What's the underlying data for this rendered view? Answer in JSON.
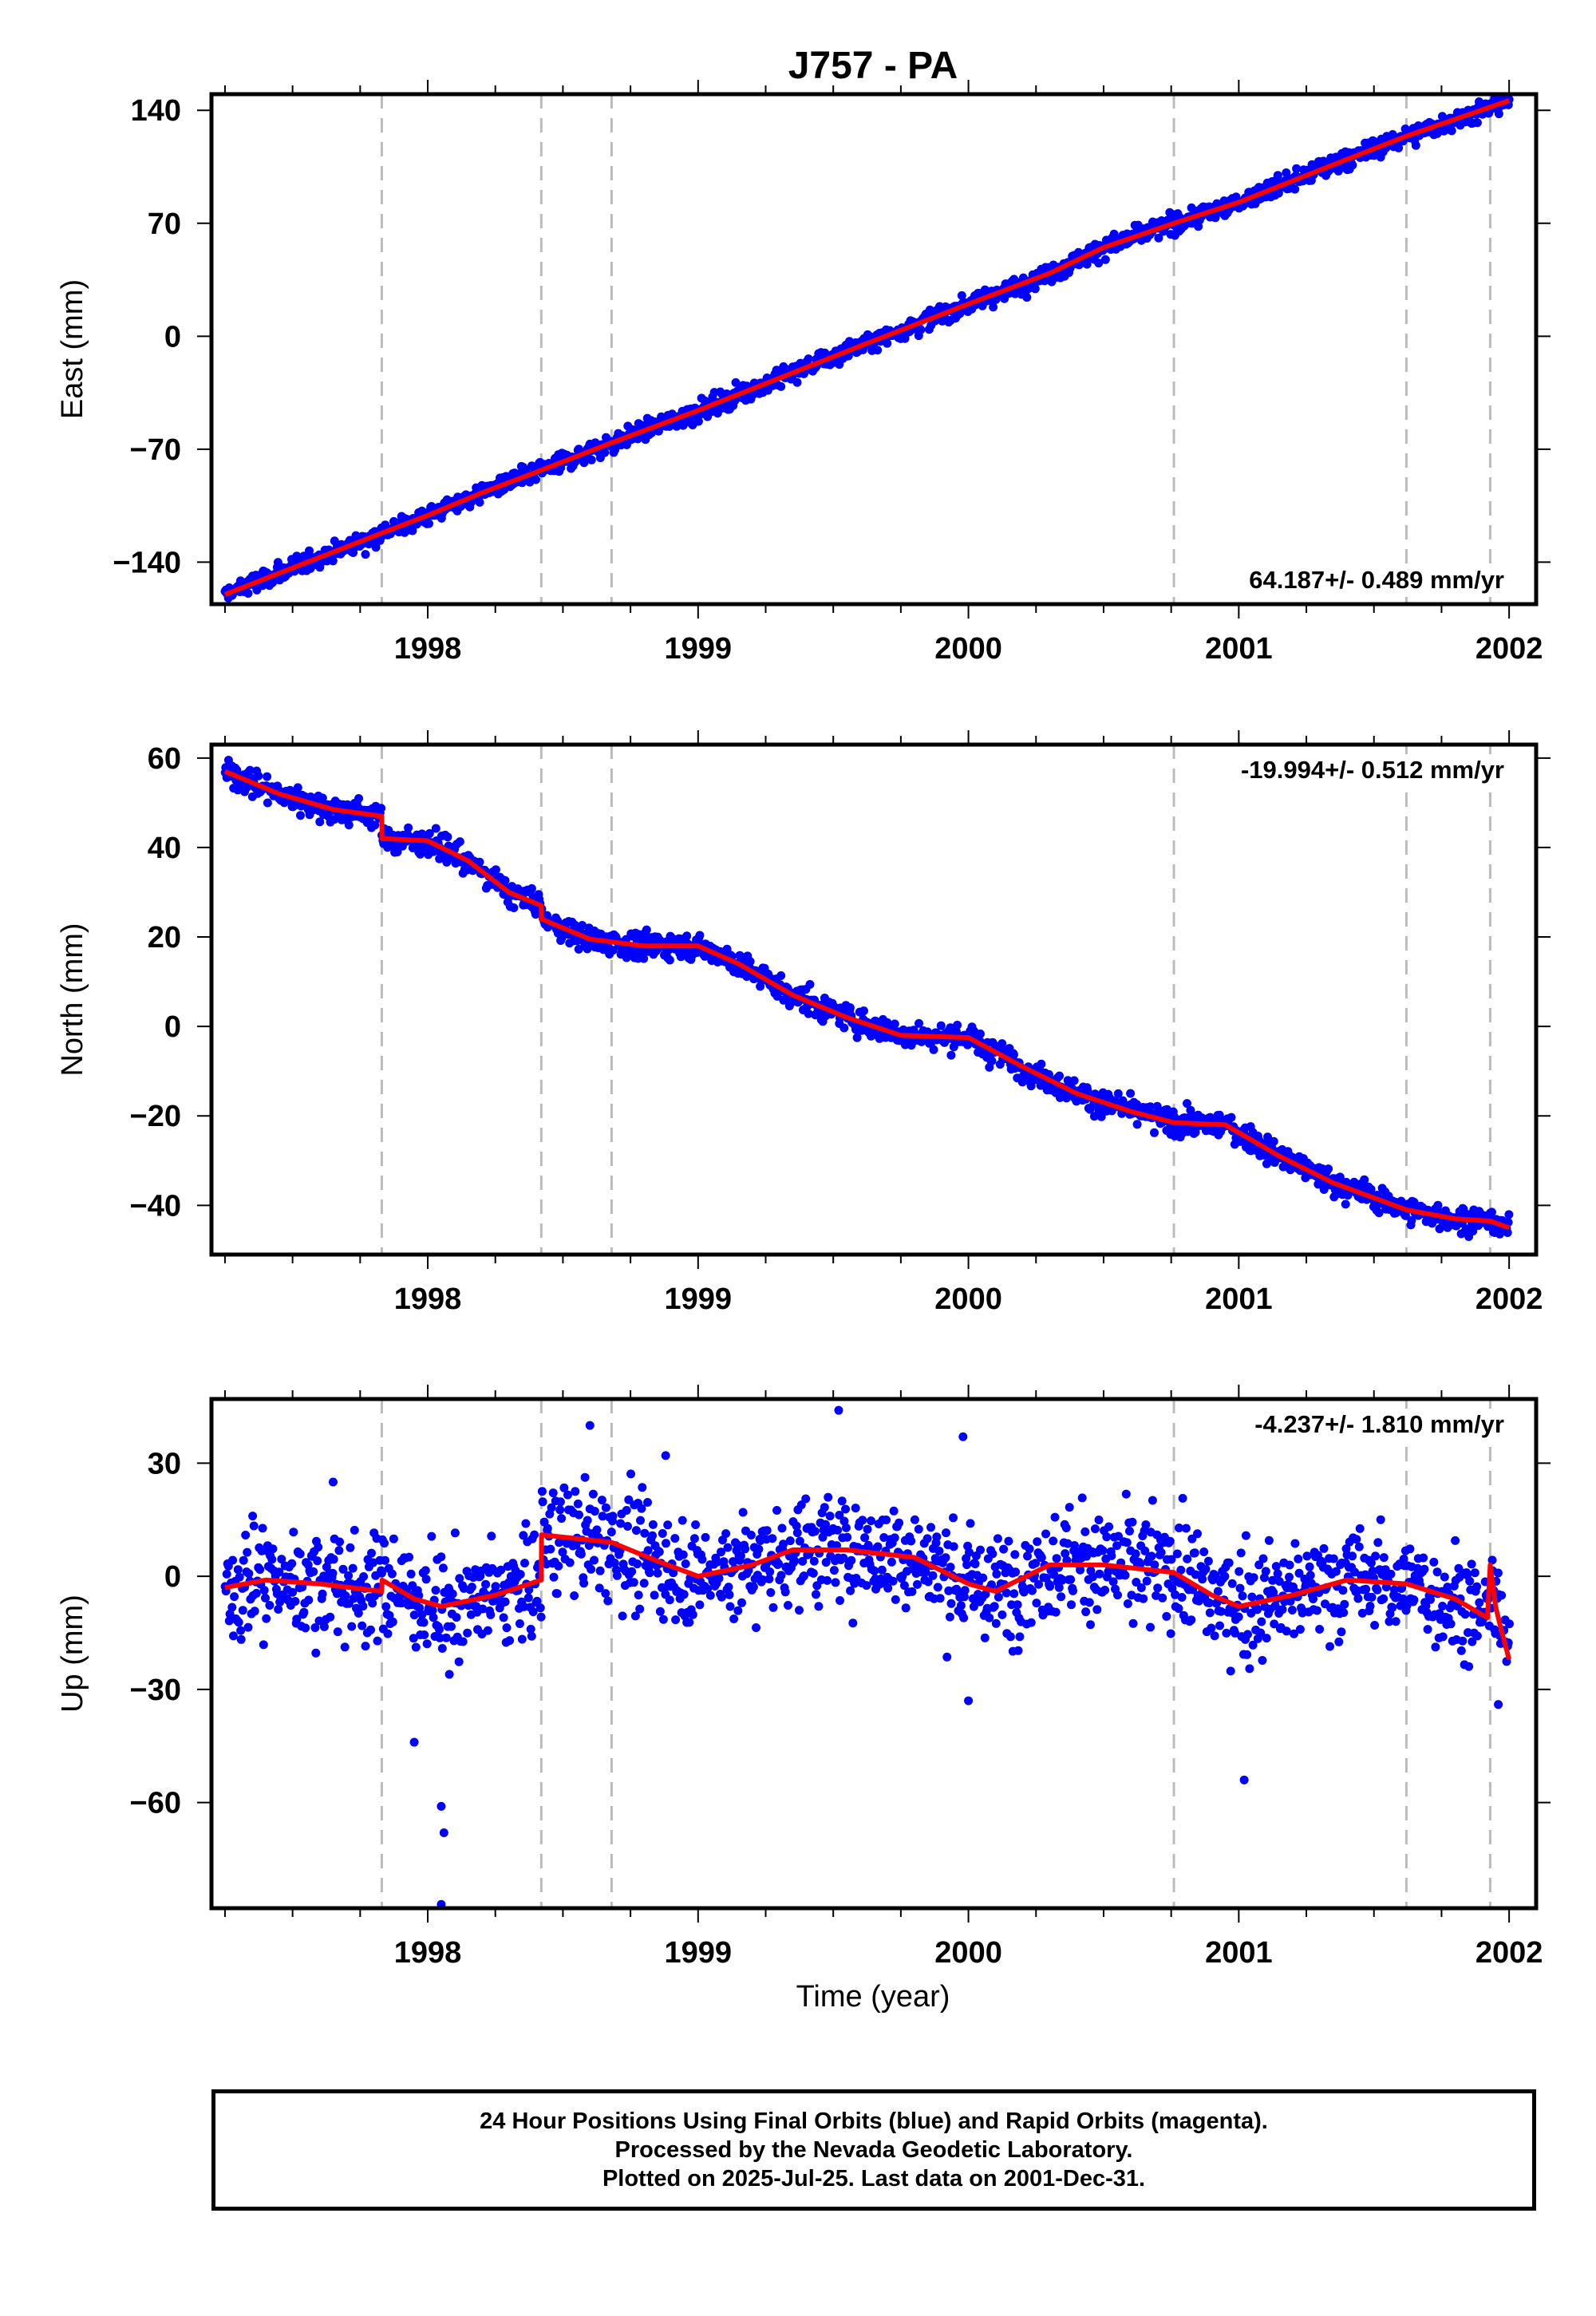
{
  "title": "J757 - PA",
  "xlabel": "Time (year)",
  "footer": {
    "line1": "24 Hour Positions Using Final Orbits (blue) and Rapid Orbits (magenta).",
    "line2": "Processed by the Nevada Geodetic Laboratory.",
    "line3": "Plotted on 2025-Jul-25. Last data on 2001-Dec-31."
  },
  "colors": {
    "data_points": "#0000ff",
    "model_line": "#ff0000",
    "event_lines": "#bbbbbb",
    "frame": "#000000"
  },
  "chart_data": [
    {
      "type": "scatter",
      "component": "East",
      "ylabel": "East (mm)",
      "rate_label": "64.187+/- 0.489 mm/yr",
      "rate_position": "bottom-right",
      "xlim": [
        1997.2,
        2002.1
      ],
      "ylim": [
        -166,
        150
      ],
      "xticks": [
        1998,
        1999,
        2000,
        2001,
        2002
      ],
      "yticks": [
        -140,
        -70,
        0,
        70,
        140
      ],
      "event_lines_x": [
        1997.83,
        1998.42,
        1998.68,
        2000.76,
        2001.62,
        2001.93
      ],
      "trend": {
        "x_start": 1997.25,
        "y_start": -160,
        "x_end": 2002.0,
        "y_end": 146
      },
      "seasonal_amplitude": 2.5,
      "noise_sigma": 3.0,
      "outliers": [
        {
          "x": 1997.27,
          "y": -182
        },
        {
          "x": 1997.28,
          "y": -178
        }
      ],
      "model": [
        [
          1997.25,
          -160
        ],
        [
          1997.6,
          -137
        ],
        [
          1997.83,
          -122
        ],
        [
          1998.0,
          -111
        ],
        [
          1998.2,
          -97
        ],
        [
          1998.42,
          -83
        ],
        [
          1998.68,
          -66
        ],
        [
          1999.0,
          -46
        ],
        [
          1999.3,
          -26
        ],
        [
          1999.6,
          -6
        ],
        [
          2000.0,
          20
        ],
        [
          2000.3,
          39
        ],
        [
          2000.5,
          55
        ],
        [
          2000.76,
          70
        ],
        [
          2001.0,
          83
        ],
        [
          2001.3,
          103
        ],
        [
          2001.62,
          124
        ],
        [
          2001.93,
          142
        ],
        [
          2002.0,
          146
        ]
      ]
    },
    {
      "type": "scatter",
      "component": "North",
      "ylabel": "North (mm)",
      "rate_label": "-19.994+/- 0.512 mm/yr",
      "rate_position": "top-right",
      "xlim": [
        1997.2,
        2002.1
      ],
      "ylim": [
        -51,
        63
      ],
      "xticks": [
        1998,
        1999,
        2000,
        2001,
        2002
      ],
      "yticks": [
        -40,
        -20,
        0,
        20,
        40,
        60
      ],
      "event_lines_x": [
        1997.83,
        1998.42,
        1998.68,
        2000.76,
        2001.62,
        2001.93
      ],
      "noise_sigma": 1.4,
      "outliers": [],
      "model": [
        [
          1997.25,
          57
        ],
        [
          1997.45,
          52
        ],
        [
          1997.65,
          48.5
        ],
        [
          1997.83,
          47
        ],
        [
          1997.831,
          42
        ],
        [
          1998.0,
          41.5
        ],
        [
          1998.15,
          37
        ],
        [
          1998.3,
          30
        ],
        [
          1998.42,
          27
        ],
        [
          1998.421,
          24
        ],
        [
          1998.6,
          19.5
        ],
        [
          1998.8,
          18
        ],
        [
          1999.0,
          18
        ],
        [
          1999.15,
          14
        ],
        [
          1999.35,
          7
        ],
        [
          1999.55,
          2
        ],
        [
          1999.75,
          -2
        ],
        [
          2000.0,
          -2.5
        ],
        [
          2000.2,
          -9
        ],
        [
          2000.4,
          -15
        ],
        [
          2000.6,
          -19
        ],
        [
          2000.76,
          -21.5
        ],
        [
          2000.95,
          -22
        ],
        [
          2001.15,
          -29
        ],
        [
          2001.35,
          -35
        ],
        [
          2001.62,
          -41
        ],
        [
          2001.8,
          -43
        ],
        [
          2001.93,
          -43.5
        ],
        [
          2002.0,
          -45
        ]
      ]
    },
    {
      "type": "scatter",
      "component": "Up",
      "ylabel": "Up (mm)",
      "rate_label": "-4.237+/- 1.810 mm/yr",
      "rate_position": "top-right",
      "xlim": [
        1997.2,
        2002.1
      ],
      "ylim": [
        -88,
        47
      ],
      "xticks": [
        1998,
        1999,
        2000,
        2001,
        2002
      ],
      "yticks": [
        -60,
        -30,
        0,
        30
      ],
      "event_lines_x": [
        1997.83,
        1998.42,
        1998.68,
        2000.76,
        2001.62,
        2001.93
      ],
      "noise_sigma": 7.0,
      "outliers": [
        {
          "x": 1997.95,
          "y": -44
        },
        {
          "x": 1998.05,
          "y": -61
        },
        {
          "x": 1998.06,
          "y": -68
        },
        {
          "x": 1998.05,
          "y": -87
        },
        {
          "x": 1998.08,
          "y": -26
        },
        {
          "x": 2001.02,
          "y": -54
        },
        {
          "x": 1999.52,
          "y": 44
        },
        {
          "x": 1998.6,
          "y": 40
        },
        {
          "x": 1999.98,
          "y": 37
        },
        {
          "x": 1998.88,
          "y": 32
        },
        {
          "x": 2000.0,
          "y": -33
        },
        {
          "x": 2001.96,
          "y": -34
        },
        {
          "x": 1997.65,
          "y": 25
        }
      ],
      "model": [
        [
          1997.25,
          -3
        ],
        [
          1997.4,
          -1
        ],
        [
          1997.6,
          -2
        ],
        [
          1997.83,
          -4
        ],
        [
          1997.831,
          -1
        ],
        [
          1997.95,
          -6
        ],
        [
          1998.05,
          -8
        ],
        [
          1998.25,
          -5
        ],
        [
          1998.42,
          -1
        ],
        [
          1998.421,
          11
        ],
        [
          1998.68,
          9
        ],
        [
          1998.85,
          4
        ],
        [
          1999.0,
          0
        ],
        [
          1999.2,
          3
        ],
        [
          1999.35,
          7
        ],
        [
          1999.55,
          7
        ],
        [
          1999.8,
          5
        ],
        [
          2000.0,
          -2
        ],
        [
          2000.1,
          -4
        ],
        [
          2000.3,
          3
        ],
        [
          2000.5,
          3
        ],
        [
          2000.76,
          1
        ],
        [
          2000.9,
          -5
        ],
        [
          2001.0,
          -8
        ],
        [
          2001.2,
          -5
        ],
        [
          2001.4,
          -1
        ],
        [
          2001.62,
          -2
        ],
        [
          2001.8,
          -6
        ],
        [
          2001.92,
          -11
        ],
        [
          2001.93,
          3
        ],
        [
          2001.95,
          -8
        ],
        [
          2001.97,
          -14
        ],
        [
          2002.0,
          -22
        ]
      ]
    }
  ]
}
